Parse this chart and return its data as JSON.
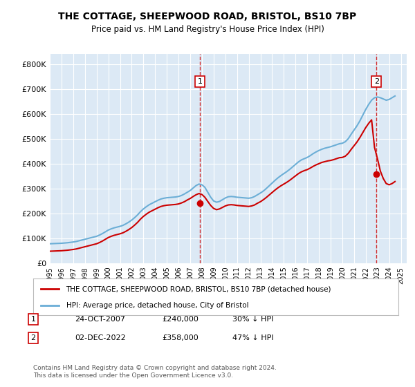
{
  "title": "THE COTTAGE, SHEEPWOOD ROAD, BRISTOL, BS10 7BP",
  "subtitle": "Price paid vs. HM Land Registry's House Price Index (HPI)",
  "bg_color": "#dce9f5",
  "plot_bg_color": "#dce9f5",
  "hpi_color": "#6baed6",
  "price_color": "#cc0000",
  "ylabel_format": "£{0}K",
  "yticks": [
    0,
    100000,
    200000,
    300000,
    400000,
    500000,
    600000,
    700000,
    800000
  ],
  "ytick_labels": [
    "£0",
    "£100K",
    "£200K",
    "£300K",
    "£400K",
    "£500K",
    "£600K",
    "£700K",
    "£800K"
  ],
  "ylim": [
    0,
    840000
  ],
  "xlim_start": 1995.0,
  "xlim_end": 2025.5,
  "sale1_date": 2007.82,
  "sale1_price": 240000,
  "sale2_date": 2022.92,
  "sale2_price": 358000,
  "legend_label1": "THE COTTAGE, SHEEPWOOD ROAD, BRISTOL, BS10 7BP (detached house)",
  "legend_label2": "HPI: Average price, detached house, City of Bristol",
  "footnote": "Contains HM Land Registry data © Crown copyright and database right 2024.\nThis data is licensed under the Open Government Licence v3.0.",
  "table_row1": [
    "1",
    "24-OCT-2007",
    "£240,000",
    "30% ↓ HPI"
  ],
  "table_row2": [
    "2",
    "02-DEC-2022",
    "£358,000",
    "47% ↓ HPI"
  ],
  "hpi_data_x": [
    1995.0,
    1995.25,
    1995.5,
    1995.75,
    1996.0,
    1996.25,
    1996.5,
    1996.75,
    1997.0,
    1997.25,
    1997.5,
    1997.75,
    1998.0,
    1998.25,
    1998.5,
    1998.75,
    1999.0,
    1999.25,
    1999.5,
    1999.75,
    2000.0,
    2000.25,
    2000.5,
    2000.75,
    2001.0,
    2001.25,
    2001.5,
    2001.75,
    2002.0,
    2002.25,
    2002.5,
    2002.75,
    2003.0,
    2003.25,
    2003.5,
    2003.75,
    2004.0,
    2004.25,
    2004.5,
    2004.75,
    2005.0,
    2005.25,
    2005.5,
    2005.75,
    2006.0,
    2006.25,
    2006.5,
    2006.75,
    2007.0,
    2007.25,
    2007.5,
    2007.75,
    2008.0,
    2008.25,
    2008.5,
    2008.75,
    2009.0,
    2009.25,
    2009.5,
    2009.75,
    2010.0,
    2010.25,
    2010.5,
    2010.75,
    2011.0,
    2011.25,
    2011.5,
    2011.75,
    2012.0,
    2012.25,
    2012.5,
    2012.75,
    2013.0,
    2013.25,
    2013.5,
    2013.75,
    2014.0,
    2014.25,
    2014.5,
    2014.75,
    2015.0,
    2015.25,
    2015.5,
    2015.75,
    2016.0,
    2016.25,
    2016.5,
    2016.75,
    2017.0,
    2017.25,
    2017.5,
    2017.75,
    2018.0,
    2018.25,
    2018.5,
    2018.75,
    2019.0,
    2019.25,
    2019.5,
    2019.75,
    2020.0,
    2020.25,
    2020.5,
    2020.75,
    2021.0,
    2021.25,
    2021.5,
    2021.75,
    2022.0,
    2022.25,
    2022.5,
    2022.75,
    2023.0,
    2023.25,
    2023.5,
    2023.75,
    2024.0,
    2024.25,
    2024.5
  ],
  "hpi_data_y": [
    78000,
    78500,
    79000,
    79500,
    80000,
    81000,
    82000,
    83500,
    85000,
    87000,
    90000,
    93000,
    96000,
    99000,
    102000,
    105000,
    108000,
    113000,
    119000,
    126000,
    133000,
    138000,
    142000,
    145000,
    148000,
    152000,
    158000,
    165000,
    173000,
    183000,
    194000,
    207000,
    218000,
    227000,
    235000,
    241000,
    247000,
    253000,
    258000,
    261000,
    263000,
    264000,
    265000,
    266000,
    268000,
    272000,
    278000,
    285000,
    292000,
    302000,
    312000,
    318000,
    315000,
    305000,
    285000,
    265000,
    250000,
    245000,
    248000,
    255000,
    262000,
    267000,
    268000,
    267000,
    265000,
    264000,
    263000,
    262000,
    261000,
    263000,
    268000,
    275000,
    282000,
    290000,
    300000,
    311000,
    322000,
    333000,
    343000,
    352000,
    360000,
    368000,
    377000,
    387000,
    397000,
    407000,
    415000,
    420000,
    425000,
    432000,
    440000,
    447000,
    453000,
    458000,
    462000,
    465000,
    468000,
    472000,
    476000,
    480000,
    482000,
    488000,
    500000,
    518000,
    535000,
    552000,
    572000,
    595000,
    618000,
    638000,
    655000,
    665000,
    668000,
    665000,
    660000,
    655000,
    658000,
    665000,
    672000
  ],
  "price_data_x": [
    1995.0,
    1995.25,
    1995.5,
    1995.75,
    1996.0,
    1996.25,
    1996.5,
    1996.75,
    1997.0,
    1997.25,
    1997.5,
    1997.75,
    1998.0,
    1998.25,
    1998.5,
    1998.75,
    1999.0,
    1999.25,
    1999.5,
    1999.75,
    2000.0,
    2000.25,
    2000.5,
    2000.75,
    2001.0,
    2001.25,
    2001.5,
    2001.75,
    2002.0,
    2002.25,
    2002.5,
    2002.75,
    2003.0,
    2003.25,
    2003.5,
    2003.75,
    2004.0,
    2004.25,
    2004.5,
    2004.75,
    2005.0,
    2005.25,
    2005.5,
    2005.75,
    2006.0,
    2006.25,
    2006.5,
    2006.75,
    2007.0,
    2007.25,
    2007.5,
    2007.75,
    2008.0,
    2008.25,
    2008.5,
    2008.75,
    2009.0,
    2009.25,
    2009.5,
    2009.75,
    2010.0,
    2010.25,
    2010.5,
    2010.75,
    2011.0,
    2011.25,
    2011.5,
    2011.75,
    2012.0,
    2012.25,
    2012.5,
    2012.75,
    2013.0,
    2013.25,
    2013.5,
    2013.75,
    2014.0,
    2014.25,
    2014.5,
    2014.75,
    2015.0,
    2015.25,
    2015.5,
    2015.75,
    2016.0,
    2016.25,
    2016.5,
    2016.75,
    2017.0,
    2017.25,
    2017.5,
    2017.75,
    2018.0,
    2018.25,
    2018.5,
    2018.75,
    2019.0,
    2019.25,
    2019.5,
    2019.75,
    2020.0,
    2020.25,
    2020.5,
    2020.75,
    2021.0,
    2021.25,
    2021.5,
    2021.75,
    2022.0,
    2022.25,
    2022.5,
    2022.75,
    2023.0,
    2023.25,
    2023.5,
    2023.75,
    2024.0,
    2024.25,
    2024.5
  ],
  "price_data_y": [
    48000,
    48500,
    49000,
    49500,
    50000,
    51000,
    52000,
    53500,
    55000,
    57000,
    60000,
    63000,
    66000,
    69000,
    72000,
    75000,
    78000,
    83000,
    89000,
    96000,
    103000,
    108000,
    112000,
    115000,
    118000,
    122000,
    128000,
    135000,
    143000,
    153000,
    164000,
    177000,
    188000,
    197000,
    205000,
    211000,
    217000,
    223000,
    228000,
    231000,
    233000,
    234000,
    235000,
    236000,
    238000,
    242000,
    247000,
    254000,
    260000,
    268000,
    275000,
    280000,
    276000,
    265000,
    248000,
    232000,
    220000,
    215000,
    218000,
    224000,
    230000,
    234000,
    235000,
    234000,
    232000,
    231000,
    230000,
    229000,
    228000,
    230000,
    234000,
    241000,
    247000,
    255000,
    264000,
    274000,
    284000,
    294000,
    303000,
    311000,
    318000,
    325000,
    333000,
    342000,
    351000,
    360000,
    367000,
    372000,
    376000,
    382000,
    389000,
    395000,
    400000,
    405000,
    408000,
    411000,
    413000,
    416000,
    420000,
    424000,
    425000,
    430000,
    441000,
    457000,
    472000,
    487000,
    505000,
    525000,
    545000,
    562000,
    576000,
    465000,
    420000,
    370000,
    340000,
    320000,
    315000,
    320000,
    328000
  ]
}
